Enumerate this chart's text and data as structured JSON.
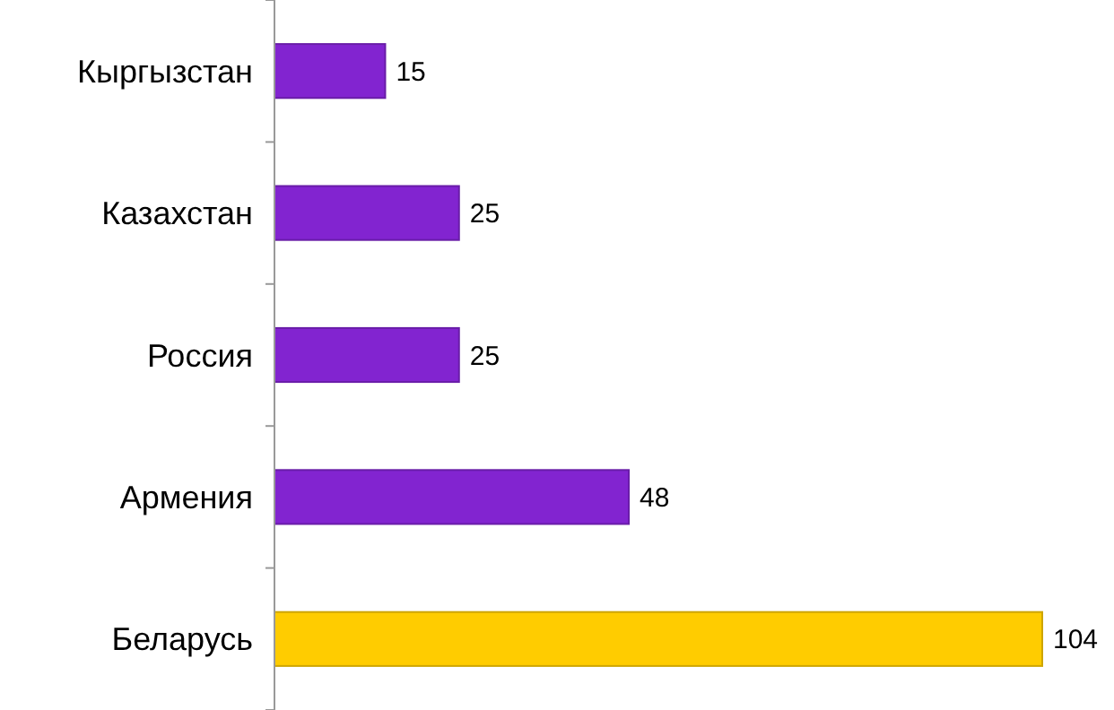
{
  "chart_data": {
    "type": "bar",
    "orientation": "horizontal",
    "categories": [
      "Кыргызстан",
      "Казахстан",
      "Россия",
      "Армения",
      "Беларусь"
    ],
    "values": [
      15,
      25,
      25,
      48,
      104
    ],
    "colors": [
      "#8224d0",
      "#8224d0",
      "#8224d0",
      "#8224d0",
      "#ffcc00"
    ],
    "tick_labels": "y",
    "data_labels": true
  }
}
